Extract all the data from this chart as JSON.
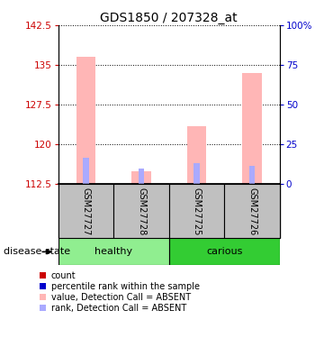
{
  "title": "GDS1850 / 207328_at",
  "samples": [
    "GSM27727",
    "GSM27728",
    "GSM27725",
    "GSM27726"
  ],
  "groups": [
    "healthy",
    "healthy",
    "carious",
    "carious"
  ],
  "group_labels": [
    "healthy",
    "carious"
  ],
  "group_colors": [
    "#90EE90",
    "#33CC33"
  ],
  "ylim_left": [
    112.5,
    142.5
  ],
  "ylim_right": [
    0,
    100
  ],
  "yticks_left": [
    112.5,
    120,
    127.5,
    135,
    142.5
  ],
  "yticks_right": [
    0,
    25,
    50,
    75,
    100
  ],
  "ytick_labels_left": [
    "112.5",
    "120",
    "127.5",
    "135",
    "142.5"
  ],
  "ytick_labels_right": [
    "0",
    "25",
    "50",
    "75",
    "100%"
  ],
  "bar_bottom": 112.5,
  "value_bars": [
    136.5,
    115.0,
    123.5,
    133.5
  ],
  "rank_bars": [
    117.5,
    115.5,
    116.5,
    116.0
  ],
  "bar_width": 0.35,
  "value_color": "#FFB6B6",
  "rank_color": "#AAAAFF",
  "label_color_left": "#CC0000",
  "label_color_right": "#0000CC",
  "legend_items": [
    {
      "color": "#CC0000",
      "label": "count"
    },
    {
      "color": "#0000CC",
      "label": "percentile rank within the sample"
    },
    {
      "color": "#FFB6B6",
      "label": "value, Detection Call = ABSENT"
    },
    {
      "color": "#AAAAFF",
      "label": "rank, Detection Call = ABSENT"
    }
  ],
  "sample_area_color": "#C0C0C0",
  "disease_label": "disease state"
}
